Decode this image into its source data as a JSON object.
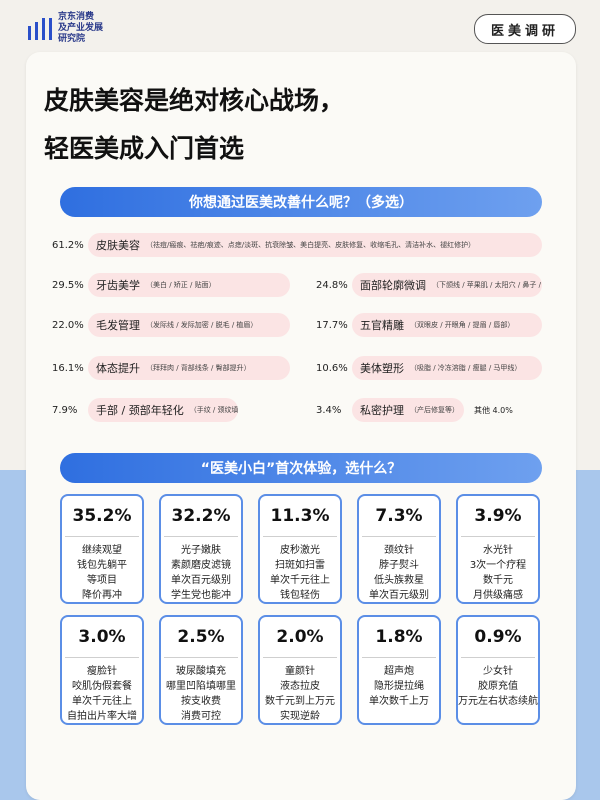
{
  "header": {
    "logo_lines": [
      "京东消费",
      "及产业发展",
      "研究院"
    ],
    "tag": "医美调研"
  },
  "title": {
    "line1": "皮肤美容是绝对核心战场，",
    "line2": "轻医美成入门首选"
  },
  "section1": {
    "title": "你想通过医美改善什么呢？（多选）",
    "other": "其他 4.0%"
  },
  "section2": {
    "title": "“医美小白”首次体验，选什么？"
  },
  "chart_data": [
    {
      "type": "bar",
      "title": "你想通过医美改善什么呢？（多选）",
      "unit": "%",
      "items": [
        {
          "name": "皮肤美容",
          "sub": "（祛痘/瘢痕、祛疤/痕迹、点痣/淡斑、抗衰除皱、美白提亮、皮肤修复、收缩毛孔、清洁补水、褪红修护）",
          "pct": "61.2%",
          "value": 61.2
        },
        {
          "name": "牙齿美学",
          "sub": "（美白 / 矫正 / 贴面）",
          "pct": "29.5%",
          "value": 29.5
        },
        {
          "name": "面部轮廓微调",
          "sub": "（下颌线 / 苹果肌 / 太阳穴 / 鼻子 / 下巴）",
          "pct": "24.8%",
          "value": 24.8
        },
        {
          "name": "毛发管理",
          "sub": "（发际线 / 发际加密 / 脱毛 / 植眉）",
          "pct": "22.0%",
          "value": 22.0
        },
        {
          "name": "五官精雕",
          "sub": "（双眼皮 / 开眼角 / 提眉 / 唇部）",
          "pct": "17.7%",
          "value": 17.7
        },
        {
          "name": "体态提升",
          "sub": "（拜拜肉 / 背部线条 / 臀部提升）",
          "pct": "16.1%",
          "value": 16.1
        },
        {
          "name": "美体塑形",
          "sub": "（吸脂 / 冷冻溶脂 / 瘦腿 / 马甲线）",
          "pct": "10.6%",
          "value": 10.6
        },
        {
          "name": "手部 / 颈部年轻化",
          "sub": "（手纹 / 颈纹填充）",
          "pct": "7.9%",
          "value": 7.9
        },
        {
          "name": "私密护理",
          "sub": "（产后修复等）",
          "pct": "3.4%",
          "value": 3.4
        },
        {
          "name": "其他",
          "sub": "",
          "pct": "4.0%",
          "value": 4.0
        }
      ]
    },
    {
      "type": "table",
      "title": "“医美小白”首次体验，选什么？",
      "unit": "%",
      "items": [
        {
          "pct": "35.2%",
          "value": 35.2,
          "lines": [
            "继续观望",
            "钱包先躺平",
            "等项目",
            "降价再冲"
          ]
        },
        {
          "pct": "32.2%",
          "value": 32.2,
          "lines": [
            "光子嫩肤",
            "素颜磨皮滤镜",
            "单次百元级别",
            "学生党也能冲"
          ]
        },
        {
          "pct": "11.3%",
          "value": 11.3,
          "lines": [
            "皮秒激光",
            "扫斑如扫雷",
            "单次千元往上",
            "钱包轻伤"
          ]
        },
        {
          "pct": "7.3%",
          "value": 7.3,
          "lines": [
            "颈纹针",
            "脖子熨斗",
            "低头族救星",
            "单次百元级别"
          ]
        },
        {
          "pct": "3.9%",
          "value": 3.9,
          "lines": [
            "水光针",
            "3次一个疗程",
            "数千元",
            "月供级痛感"
          ]
        },
        {
          "pct": "3.0%",
          "value": 3.0,
          "lines": [
            "瘦脸针",
            "咬肌伪假套餐",
            "单次千元往上",
            "自拍出片率大增"
          ]
        },
        {
          "pct": "2.5%",
          "value": 2.5,
          "lines": [
            "玻尿酸填充",
            "哪里凹陷填哪里",
            "按支收费",
            "消费可控"
          ]
        },
        {
          "pct": "2.0%",
          "value": 2.0,
          "lines": [
            "童颜针",
            "液态拉皮",
            "数千元到上万元",
            "实现逆龄"
          ]
        },
        {
          "pct": "1.8%",
          "value": 1.8,
          "lines": [
            "超声炮",
            "隐形提拉绳",
            "单次数千上万"
          ]
        },
        {
          "pct": "0.9%",
          "value": 0.9,
          "lines": [
            "少女针",
            "胶原充值",
            "万元左右状态续航"
          ]
        }
      ]
    }
  ]
}
